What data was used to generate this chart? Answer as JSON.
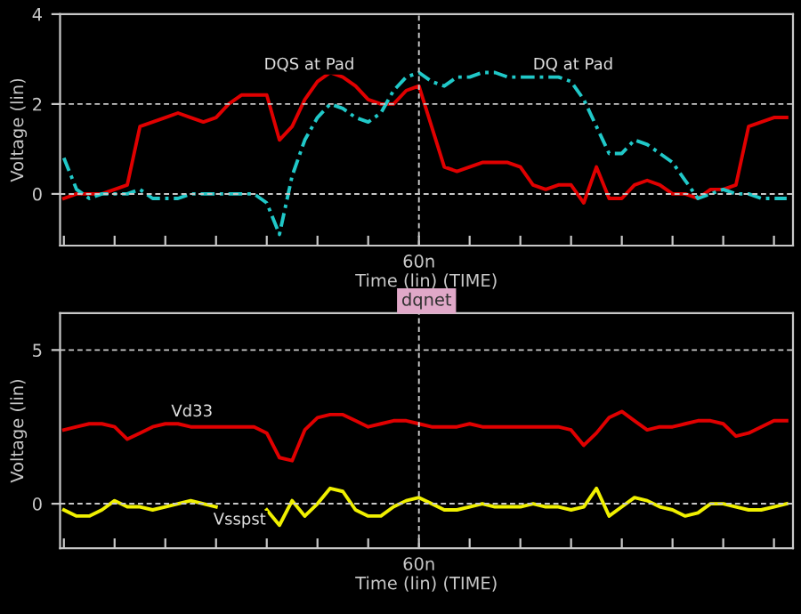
{
  "chart_data": [
    {
      "type": "line",
      "xlabel": "Time (lin) (TIME)",
      "ylabel": "Voltage (lin)",
      "ylim": [
        -1.15,
        4
      ],
      "categories": [
        null,
        null,
        null,
        null,
        null,
        null,
        null,
        null,
        null,
        null,
        null,
        null,
        null,
        null,
        null,
        null,
        null,
        null,
        null,
        null,
        null,
        null,
        null,
        null,
        null,
        null,
        null,
        null,
        "60n",
        null,
        null,
        null,
        null,
        null,
        null,
        null,
        null,
        null,
        null,
        null,
        null,
        null,
        null,
        null,
        null,
        null,
        null,
        null,
        null,
        null,
        null,
        null,
        null,
        null,
        null,
        null,
        null,
        null
      ],
      "yticks": [
        0,
        2,
        4
      ],
      "grid": true,
      "marker": "none",
      "annotations": [
        "DQS at Pad",
        "DQ at Pad"
      ],
      "series": [
        {
          "color": "#e00000",
          "line_style": "solid",
          "values": [
            -0.1,
            0.0,
            0.0,
            0.0,
            0.1,
            0.2,
            1.5,
            1.6,
            1.7,
            1.8,
            1.7,
            1.6,
            1.7,
            2.0,
            2.2,
            2.2,
            2.2,
            1.2,
            1.5,
            2.1,
            2.5,
            2.7,
            2.6,
            2.4,
            2.1,
            2.0,
            2.0,
            2.3,
            2.4,
            1.5,
            0.6,
            0.5,
            0.6,
            0.7,
            0.7,
            0.7,
            0.6,
            0.2,
            0.1,
            0.2,
            0.2,
            -0.2,
            0.6,
            -0.1,
            -0.1,
            0.2,
            0.3,
            0.2,
            0.0,
            0.0,
            -0.1,
            0.1,
            0.1,
            0.2,
            1.5,
            1.6,
            1.7,
            1.7
          ]
        },
        {
          "color": "#20c8c8",
          "line_style": "dashed",
          "values": [
            0.8,
            0.1,
            -0.1,
            0.0,
            0.0,
            0.0,
            0.1,
            -0.1,
            -0.1,
            -0.1,
            0.0,
            0.0,
            0.0,
            0.0,
            0.0,
            0.0,
            -0.2,
            -0.9,
            0.4,
            1.2,
            1.7,
            2.0,
            1.9,
            1.7,
            1.6,
            1.8,
            2.3,
            2.6,
            2.7,
            2.5,
            2.4,
            2.6,
            2.6,
            2.7,
            2.7,
            2.6,
            2.6,
            2.6,
            2.6,
            2.6,
            2.5,
            2.1,
            1.5,
            0.9,
            0.9,
            1.2,
            1.1,
            0.9,
            0.7,
            0.3,
            -0.1,
            0.0,
            0.1,
            0.0,
            0.0,
            -0.1,
            -0.1,
            -0.1
          ]
        }
      ]
    },
    {
      "type": "line",
      "title": "dqnet",
      "xlabel": "Time (lin) (TIME)",
      "ylabel": "Voltage (lin)",
      "ylim": [
        -1.45,
        6.2
      ],
      "categories": [
        null,
        null,
        null,
        null,
        null,
        null,
        null,
        null,
        null,
        null,
        null,
        null,
        null,
        null,
        null,
        null,
        null,
        null,
        null,
        null,
        null,
        null,
        null,
        null,
        null,
        null,
        null,
        null,
        "60n",
        null,
        null,
        null,
        null,
        null,
        null,
        null,
        null,
        null,
        null,
        null,
        null,
        null,
        null,
        null,
        null,
        null,
        null,
        null,
        null,
        null,
        null,
        null,
        null,
        null,
        null,
        null,
        null,
        null
      ],
      "yticks": [
        0,
        5
      ],
      "grid": true,
      "marker": "none",
      "annotations": [
        "Vd33",
        "Vsspst"
      ],
      "series": [
        {
          "color": "#e00000",
          "line_style": "solid",
          "values": [
            2.4,
            2.5,
            2.6,
            2.6,
            2.5,
            2.1,
            2.3,
            2.5,
            2.6,
            2.6,
            2.5,
            2.5,
            2.5,
            2.5,
            2.5,
            2.5,
            2.3,
            1.5,
            1.4,
            2.4,
            2.8,
            2.9,
            2.9,
            2.7,
            2.5,
            2.6,
            2.7,
            2.7,
            2.6,
            2.5,
            2.5,
            2.5,
            2.6,
            2.5,
            2.5,
            2.5,
            2.5,
            2.5,
            2.5,
            2.5,
            2.4,
            1.9,
            2.3,
            2.8,
            3.0,
            2.7,
            2.4,
            2.5,
            2.5,
            2.6,
            2.7,
            2.7,
            2.6,
            2.2,
            2.3,
            2.5,
            2.7,
            2.7
          ]
        },
        {
          "color": "#f0f000",
          "line_style": "solid",
          "values": [
            -0.2,
            -0.4,
            -0.4,
            -0.2,
            0.1,
            -0.1,
            -0.1,
            -0.2,
            -0.1,
            0.0,
            0.1,
            0.0,
            -0.1,
            null,
            null,
            null,
            -0.2,
            -0.7,
            0.1,
            -0.4,
            0.0,
            0.5,
            0.4,
            -0.2,
            -0.4,
            -0.4,
            -0.1,
            0.1,
            0.2,
            0.0,
            -0.2,
            -0.2,
            -0.1,
            0.0,
            -0.1,
            -0.1,
            -0.1,
            0.0,
            -0.1,
            -0.1,
            -0.2,
            -0.1,
            0.5,
            -0.4,
            -0.1,
            0.2,
            0.1,
            -0.1,
            -0.2,
            -0.4,
            -0.3,
            0.0,
            0.0,
            -0.1,
            -0.2,
            -0.2,
            -0.1,
            0.0
          ]
        }
      ]
    }
  ]
}
